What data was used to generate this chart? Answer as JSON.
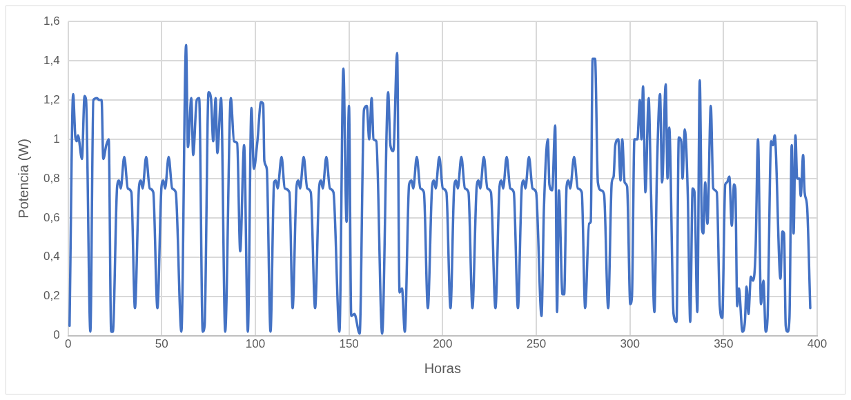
{
  "chart_data": {
    "type": "line",
    "xlabel": "Horas",
    "ylabel": "Potencia (W)",
    "xlim": [
      0,
      400
    ],
    "ylim": [
      0,
      1.6
    ],
    "xticks": [
      0,
      50,
      100,
      150,
      200,
      250,
      300,
      350,
      400
    ],
    "yticks": [
      0,
      {
        "value": 0.2,
        "label": "0,2"
      },
      {
        "value": 0.4,
        "label": "0,4"
      },
      {
        "value": 0.6,
        "label": "0,6"
      },
      {
        "value": 0.8,
        "label": "0,8"
      },
      1,
      {
        "value": 1.2,
        "label": "1,2"
      },
      {
        "value": 1.4,
        "label": "1,4"
      },
      {
        "value": 1.6,
        "label": "1,6"
      }
    ],
    "grid": true,
    "legend": false,
    "marker": "none",
    "line_style": "solid",
    "series": [
      {
        "color": "#4472c4",
        "x": [
          0.8,
          2.7,
          3.9,
          4.7,
          5.3,
          7.4,
          8.8,
          9.6,
          11.9,
          13.5,
          15.4,
          16.6,
          17.9,
          18.8,
          20.4,
          21.7,
          23.0,
          23.9,
          26.2,
          27.2,
          28.1,
          30.0,
          31.9,
          33.8,
          35.7,
          37.9,
          38.9,
          39.8,
          41.7,
          43.6,
          45.5,
          47.7,
          49.9,
          50.9,
          51.8,
          53.7,
          55.6,
          57.5,
          60.5,
          63.0,
          64.0,
          65.8,
          66.8,
          68.7,
          70.0,
          71.9,
          72.9,
          75.0,
          76.3,
          77.5,
          78.8,
          79.7,
          81.7,
          83.9,
          86.9,
          88.6,
          90.3,
          91.9,
          94.0,
          96.0,
          97.9,
          99.2,
          101.1,
          103.0,
          104.2,
          104.8,
          106.1,
          108.1,
          110.0,
          111.0,
          111.9,
          114.0,
          115.7,
          118.2,
          119.9,
          122.0,
          123.0,
          123.9,
          125.8,
          127.7,
          129.6,
          131.9,
          134.1,
          135.1,
          136.0,
          137.9,
          139.8,
          141.7,
          144.9,
          147.0,
          148.7,
          150.0,
          151.2,
          152.9,
          155.7,
          158.0,
          159.5,
          160.8,
          162.1,
          163.1,
          164.6,
          167.7,
          170.9,
          172.1,
          173.7,
          175.7,
          177.0,
          178.3,
          179.8,
          182.1,
          183.4,
          184.3,
          186.2,
          188.1,
          190.0,
          192.1,
          194.4,
          195.4,
          196.3,
          198.2,
          200.1,
          202.0,
          204.2,
          206.2,
          207.2,
          208.1,
          210.0,
          211.9,
          213.8,
          215.9,
          218.2,
          219.2,
          220.1,
          222.0,
          223.9,
          225.8,
          228.2,
          230.4,
          231.4,
          232.3,
          234.2,
          236.1,
          238.0,
          240.2,
          242.3,
          243.3,
          244.2,
          246.1,
          248.0,
          249.9,
          252.8,
          254.1,
          256.2,
          257.0,
          258.5,
          260.1,
          261.1,
          262.1,
          264.0,
          264.9,
          266.2,
          267.2,
          268.1,
          270.2,
          272.2,
          274.3,
          276.1,
          278.2,
          279.1,
          280.1,
          281.4,
          282.9,
          284.6,
          286.2,
          288.4,
          290.3,
          291.3,
          292.2,
          293.8,
          295.0,
          295.9,
          297.2,
          298.5,
          300.2,
          301.1,
          302.4,
          304.0,
          305.3,
          306.2,
          307.0,
          308.3,
          310.0,
          311.3,
          313.1,
          314.4,
          316.1,
          317.2,
          319.1,
          320.1,
          321.0,
          323.3,
          324.9,
          326.1,
          327.4,
          328.1,
          329.3,
          330.9,
          332.2,
          333.5,
          334.5,
          336.0,
          337.3,
          338.5,
          339.2,
          340.2,
          341.4,
          343.2,
          344.5,
          346.4,
          348.0,
          349.3,
          350.9,
          351.8,
          353.1,
          354.4,
          355.6,
          356.3,
          357.3,
          358.2,
          360.1,
          361.4,
          362.3,
          363.3,
          364.6,
          365.8,
          367.1,
          368.4,
          370.0,
          371.3,
          372.5,
          373.5,
          375.4,
          376.4,
          377.3,
          380.4,
          381.4,
          382.3,
          383.2,
          384.2,
          385.2,
          386.4,
          387.4,
          388.4,
          389.3,
          390.6,
          391.2,
          392.5,
          393.3,
          394.6,
          396.3
        ],
        "values": [
          0.05,
          1.23,
          1.01,
          0.99,
          1.02,
          0.9,
          1.22,
          1.2,
          0.02,
          1.2,
          1.21,
          1.2,
          1.2,
          0.9,
          0.97,
          1.0,
          0.02,
          0.02,
          0.76,
          0.79,
          0.75,
          0.91,
          0.75,
          0.73,
          0.14,
          0.76,
          0.79,
          0.75,
          0.91,
          0.75,
          0.73,
          0.14,
          0.76,
          0.79,
          0.75,
          0.91,
          0.75,
          0.73,
          0.02,
          1.48,
          0.96,
          1.21,
          0.92,
          1.2,
          1.21,
          0.02,
          0.05,
          1.24,
          1.21,
          0.99,
          1.21,
          0.93,
          1.21,
          0.02,
          1.21,
          0.99,
          0.98,
          0.43,
          0.97,
          0.02,
          1.16,
          0.85,
          0.99,
          1.19,
          1.18,
          0.89,
          0.85,
          0.02,
          0.78,
          0.79,
          0.75,
          0.91,
          0.75,
          0.73,
          0.14,
          0.76,
          0.79,
          0.75,
          0.91,
          0.75,
          0.73,
          0.14,
          0.76,
          0.79,
          0.75,
          0.91,
          0.75,
          0.73,
          0.02,
          1.36,
          0.58,
          1.17,
          0.1,
          0.11,
          0.01,
          1.15,
          1.17,
          1.0,
          1.21,
          1.0,
          0.99,
          0.01,
          1.24,
          0.97,
          0.94,
          1.44,
          0.22,
          0.24,
          0.02,
          0.77,
          0.79,
          0.75,
          0.91,
          0.75,
          0.73,
          0.14,
          0.76,
          0.79,
          0.75,
          0.91,
          0.75,
          0.73,
          0.14,
          0.76,
          0.79,
          0.75,
          0.91,
          0.75,
          0.73,
          0.14,
          0.76,
          0.79,
          0.75,
          0.91,
          0.75,
          0.73,
          0.14,
          0.76,
          0.79,
          0.75,
          0.91,
          0.75,
          0.73,
          0.14,
          0.76,
          0.79,
          0.75,
          0.91,
          0.75,
          0.73,
          0.1,
          0.65,
          1.0,
          0.77,
          0.74,
          1.07,
          0.12,
          0.74,
          0.21,
          0.21,
          0.76,
          0.79,
          0.75,
          0.91,
          0.75,
          0.73,
          0.14,
          0.57,
          0.58,
          1.41,
          1.41,
          0.78,
          0.74,
          0.72,
          0.14,
          0.78,
          0.81,
          0.97,
          1.0,
          0.79,
          1.0,
          0.78,
          0.76,
          0.16,
          0.2,
          1.0,
          1.0,
          1.2,
          1.0,
          1.27,
          0.73,
          1.21,
          0.72,
          0.12,
          0.82,
          1.23,
          0.78,
          1.28,
          0.8,
          1.06,
          0.11,
          0.07,
          1.01,
          0.99,
          0.8,
          1.05,
          0.72,
          0.07,
          0.75,
          0.73,
          0.12,
          1.3,
          0.54,
          0.52,
          0.78,
          0.57,
          1.17,
          0.75,
          0.73,
          0.15,
          0.09,
          0.77,
          0.78,
          0.81,
          0.56,
          0.77,
          0.75,
          0.15,
          0.24,
          0.02,
          0.07,
          0.25,
          0.11,
          0.3,
          0.28,
          0.43,
          1.0,
          0.16,
          0.28,
          0.02,
          0.09,
          0.99,
          0.97,
          1.02,
          0.29,
          0.53,
          0.52,
          0.05,
          0.02,
          0.09,
          0.97,
          0.52,
          1.02,
          0.8,
          0.8,
          0.71,
          0.92,
          0.73,
          0.66,
          0.14
        ]
      }
    ]
  }
}
